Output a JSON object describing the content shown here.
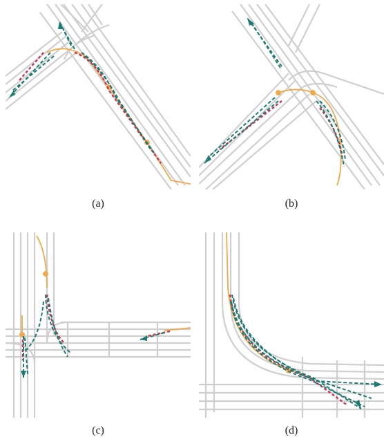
{
  "panels": [
    {
      "id": "a",
      "caption": "(a)"
    },
    {
      "id": "b",
      "caption": "(b)"
    },
    {
      "id": "c",
      "caption": "(c)"
    },
    {
      "id": "d",
      "caption": "(d)"
    }
  ],
  "colors": {
    "road": "#cfcfcf",
    "history": "#f0a84a",
    "prediction": "#1f7a72",
    "ground_truth": "#c9344e"
  }
}
